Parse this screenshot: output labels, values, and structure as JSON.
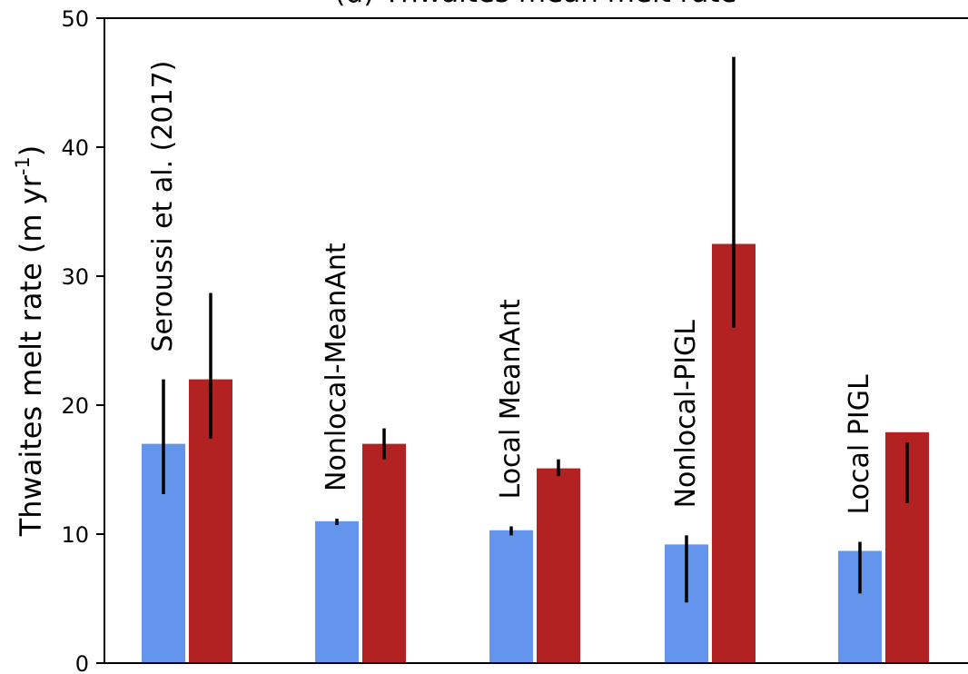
{
  "chart_data": {
    "type": "bar",
    "title": "(d) Thwaites mean melt rate",
    "ylabel": "Thwaites melt rate (m yr",
    "ylabel_sup": "-1",
    "ylabel_close": ")",
    "xlabel": "",
    "ylim": [
      0,
      50
    ],
    "yticks": [
      0,
      10,
      20,
      30,
      40,
      50
    ],
    "grid": false,
    "categories": [
      "Seroussi et al. (2017)",
      "Nonlocal-MeanAnt",
      "Local MeanAnt",
      "Nonlocal-PIGL",
      "Local PIGL"
    ],
    "series": [
      {
        "color": "#6495ED",
        "values": [
          17.0,
          11.0,
          10.3,
          9.2,
          8.7
        ],
        "err_low": [
          13.1,
          10.7,
          9.9,
          4.7,
          5.4
        ],
        "err_high": [
          22.0,
          11.2,
          10.6,
          9.9,
          9.4
        ]
      },
      {
        "color": "#B22222",
        "values": [
          22.0,
          17.0,
          15.1,
          32.5,
          17.9
        ],
        "err_low": [
          17.4,
          15.8,
          14.5,
          26.0,
          12.4
        ],
        "err_high": [
          28.7,
          18.2,
          15.8,
          47.0,
          17.1
        ]
      }
    ]
  }
}
